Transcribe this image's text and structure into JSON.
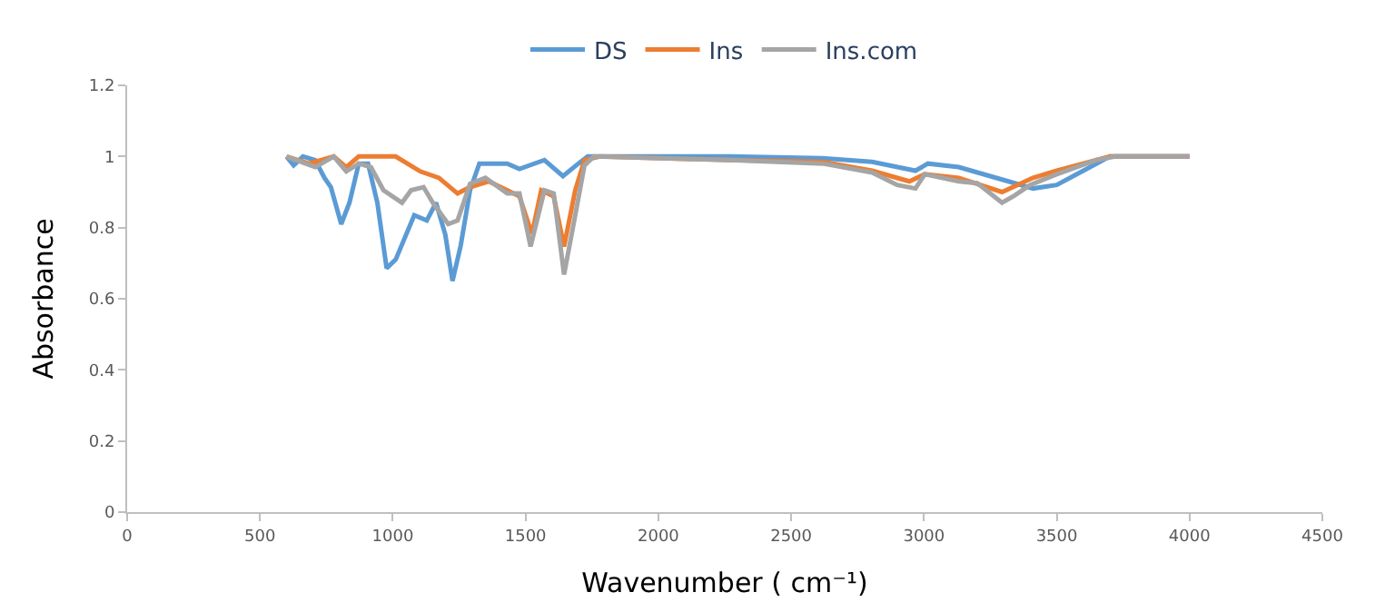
{
  "chart_data": {
    "type": "line",
    "xlabel": "Wavenumber ( cm⁻¹)",
    "ylabel": "Absorbance",
    "xlim": [
      0,
      4500
    ],
    "xticks": [
      0,
      500,
      1000,
      1500,
      2000,
      2500,
      3000,
      3500,
      4000,
      4500
    ],
    "ylim": [
      0,
      1.2
    ],
    "yticks": [
      0,
      0.2,
      0.4,
      0.6,
      0.8,
      1,
      1.2
    ],
    "grid": false,
    "legend": "top",
    "marker": "none",
    "line_style": "solid",
    "series": [
      {
        "name": "DS",
        "color": "#5b9bd5",
        "x": [
          600,
          627,
          662,
          708,
          743,
          767,
          806,
          837,
          872,
          907,
          942,
          977,
          1011,
          1081,
          1128,
          1163,
          1198,
          1225,
          1256,
          1291,
          1326,
          1431,
          1477,
          1571,
          1641,
          1699,
          1734,
          1803,
          2270,
          2619,
          2805,
          2968,
          3015,
          3131,
          3318,
          3411,
          3500,
          3600,
          3700,
          4000
        ],
        "values": [
          1.0,
          0.975,
          1.0,
          0.99,
          0.94,
          0.914,
          0.81,
          0.87,
          0.98,
          0.98,
          0.87,
          0.686,
          0.71,
          0.835,
          0.82,
          0.87,
          0.78,
          0.65,
          0.75,
          0.905,
          0.98,
          0.98,
          0.965,
          0.99,
          0.945,
          0.98,
          1.0,
          1.0,
          1.0,
          0.995,
          0.985,
          0.96,
          0.98,
          0.97,
          0.93,
          0.91,
          0.92,
          0.96,
          1.0,
          1.0
        ]
      },
      {
        "name": "Ins",
        "color": "#ed7d31",
        "x": [
          600,
          685,
          778,
          825,
          872,
          1011,
          1104,
          1174,
          1244,
          1291,
          1361,
          1431,
          1477,
          1524,
          1559,
          1606,
          1645,
          1687,
          1722,
          1780,
          2270,
          2619,
          2805,
          2945,
          3003,
          3131,
          3294,
          3411,
          3500,
          3650,
          3700,
          4000
        ],
        "values": [
          1.0,
          0.98,
          1.0,
          0.97,
          1.0,
          1.0,
          0.958,
          0.94,
          0.896,
          0.914,
          0.93,
          0.905,
          0.888,
          0.782,
          0.905,
          0.888,
          0.747,
          0.905,
          0.99,
          1.0,
          0.99,
          0.985,
          0.96,
          0.93,
          0.95,
          0.94,
          0.9,
          0.94,
          0.96,
          0.99,
          1.0,
          1.0
        ]
      },
      {
        "name": "Ins.com",
        "color": "#a5a5a5",
        "x": [
          600,
          708,
          778,
          825,
          872,
          918,
          965,
          1035,
          1069,
          1116,
          1151,
          1209,
          1244,
          1291,
          1349,
          1431,
          1477,
          1519,
          1571,
          1606,
          1645,
          1687,
          1722,
          1757,
          2270,
          2619,
          2805,
          2899,
          2968,
          3003,
          3131,
          3201,
          3294,
          3341,
          3400,
          3500,
          3650,
          3720,
          4000
        ],
        "values": [
          1.0,
          0.97,
          1.0,
          0.958,
          0.98,
          0.97,
          0.905,
          0.87,
          0.905,
          0.914,
          0.87,
          0.81,
          0.82,
          0.923,
          0.94,
          0.896,
          0.896,
          0.747,
          0.905,
          0.896,
          0.668,
          0.835,
          0.975,
          1.0,
          0.99,
          0.98,
          0.955,
          0.92,
          0.91,
          0.95,
          0.93,
          0.925,
          0.87,
          0.89,
          0.92,
          0.95,
          0.99,
          1.0,
          1.0
        ]
      }
    ]
  }
}
